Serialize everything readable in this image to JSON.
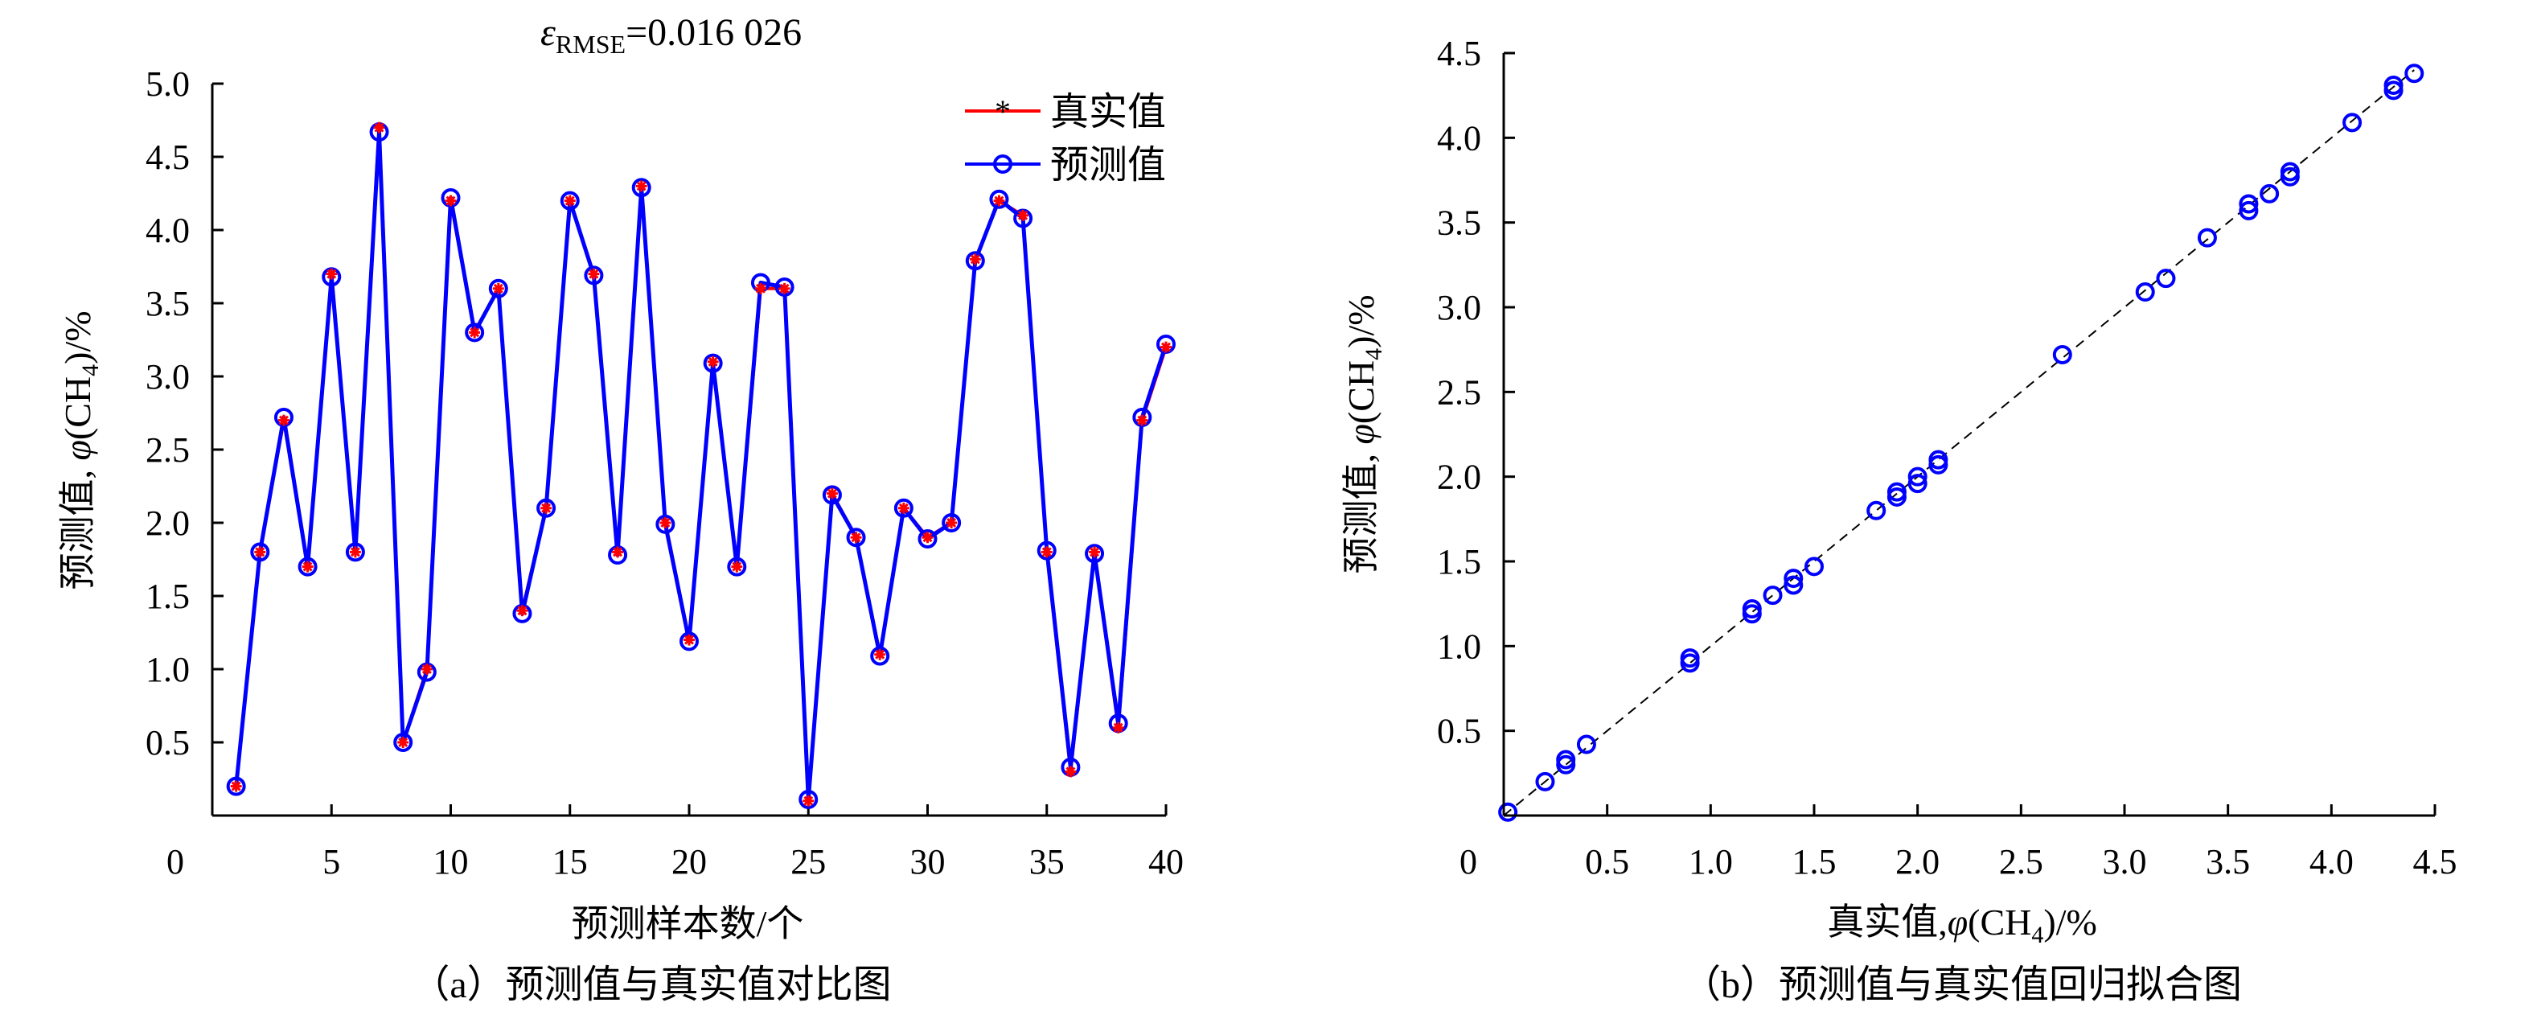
{
  "chart_data": [
    {
      "type": "line",
      "title": "εRMSE=0.016 026",
      "title_symbol": "ε",
      "title_sub": "RMSE",
      "title_value": "=0.016 026",
      "xlabel": "预测样本数/个",
      "ylabel_prefix": "预测值, ",
      "ylabel_phi": "φ",
      "ylabel_open": "(",
      "ylabel_ch": "CH",
      "ylabel_sub": "4",
      "ylabel_close": ")/%",
      "caption": "（a）预测值与真实值对比图",
      "xlim": [
        0,
        40
      ],
      "ylim": [
        0,
        5.0
      ],
      "x_ticks": [
        "5",
        "10",
        "15",
        "20",
        "25",
        "30",
        "35",
        "40"
      ],
      "x_origin_label": "0",
      "y_ticks": [
        "0.5",
        "1.0",
        "1.5",
        "2.0",
        "2.5",
        "3.0",
        "3.5",
        "4.0",
        "4.5",
        "5.0"
      ],
      "legend_position": "top-right",
      "x": [
        1,
        2,
        3,
        4,
        5,
        6,
        7,
        8,
        9,
        10,
        11,
        12,
        13,
        14,
        15,
        16,
        17,
        18,
        19,
        20,
        21,
        22,
        23,
        24,
        25,
        26,
        27,
        28,
        29,
        30,
        31,
        32,
        33,
        34,
        35,
        36,
        37,
        38,
        39,
        40
      ],
      "series": [
        {
          "name": "真实值",
          "color": "#ff0000",
          "marker": "asterisk",
          "values": [
            0.2,
            1.8,
            2.7,
            1.7,
            3.7,
            1.8,
            4.7,
            0.5,
            1.0,
            4.2,
            3.3,
            3.6,
            1.4,
            2.1,
            4.2,
            3.7,
            1.8,
            4.3,
            2.0,
            1.2,
            3.1,
            1.7,
            3.6,
            3.6,
            0.1,
            2.2,
            1.9,
            1.1,
            2.1,
            1.9,
            2.0,
            3.8,
            4.2,
            4.1,
            1.8,
            0.3,
            1.8,
            0.6,
            2.7,
            3.2
          ]
        },
        {
          "name": "预测值",
          "color": "#0000ff",
          "marker": "circle",
          "values": [
            0.2,
            1.8,
            2.72,
            1.7,
            3.68,
            1.8,
            4.67,
            0.5,
            0.98,
            4.22,
            3.3,
            3.6,
            1.38,
            2.1,
            4.2,
            3.69,
            1.78,
            4.29,
            1.99,
            1.19,
            3.09,
            1.7,
            3.64,
            3.61,
            0.11,
            2.19,
            1.9,
            1.09,
            2.1,
            1.89,
            2.0,
            3.79,
            4.21,
            4.08,
            1.81,
            0.33,
            1.79,
            0.63,
            2.72,
            3.22
          ]
        }
      ]
    },
    {
      "type": "scatter",
      "xlabel_prefix": "真实值,",
      "xlabel_phi": "φ",
      "xlabel_open": "(",
      "xlabel_ch": "CH",
      "xlabel_sub": "4",
      "xlabel_close": ")/%",
      "ylabel_prefix": "预测值, ",
      "ylabel_phi": "φ",
      "ylabel_open": "(",
      "ylabel_ch": "CH",
      "ylabel_sub": "4",
      "ylabel_close": ")/%",
      "caption": "（b）预测值与真实值回归拟合图",
      "xlim": [
        0,
        4.5
      ],
      "ylim": [
        0,
        4.5
      ],
      "origin_label": "0",
      "x_ticks": [
        "0.5",
        "1.0",
        "1.5",
        "2.0",
        "2.5",
        "3.0",
        "3.5",
        "4.0",
        "4.5"
      ],
      "y_ticks": [
        "0.5",
        "1.0",
        "1.5",
        "2.0",
        "2.5",
        "3.0",
        "3.5",
        "4.0",
        "4.5"
      ],
      "reference_line": "y = x, dashed black",
      "point_color": "#0000ff",
      "points": [
        {
          "x": 0.02,
          "y": 0.02
        },
        {
          "x": 0.2,
          "y": 0.2
        },
        {
          "x": 0.3,
          "y": 0.3
        },
        {
          "x": 0.3,
          "y": 0.33
        },
        {
          "x": 0.4,
          "y": 0.42
        },
        {
          "x": 0.9,
          "y": 0.9
        },
        {
          "x": 0.9,
          "y": 0.93
        },
        {
          "x": 1.2,
          "y": 1.19
        },
        {
          "x": 1.2,
          "y": 1.22
        },
        {
          "x": 1.3,
          "y": 1.3
        },
        {
          "x": 1.4,
          "y": 1.36
        },
        {
          "x": 1.4,
          "y": 1.4
        },
        {
          "x": 1.5,
          "y": 1.47
        },
        {
          "x": 1.8,
          "y": 1.8
        },
        {
          "x": 1.9,
          "y": 1.88
        },
        {
          "x": 1.9,
          "y": 1.91
        },
        {
          "x": 2.0,
          "y": 1.96
        },
        {
          "x": 2.0,
          "y": 2.0
        },
        {
          "x": 2.1,
          "y": 2.07
        },
        {
          "x": 2.1,
          "y": 2.1
        },
        {
          "x": 2.7,
          "y": 2.72
        },
        {
          "x": 3.1,
          "y": 3.09
        },
        {
          "x": 3.2,
          "y": 3.17
        },
        {
          "x": 3.4,
          "y": 3.41
        },
        {
          "x": 3.6,
          "y": 3.57
        },
        {
          "x": 3.6,
          "y": 3.61
        },
        {
          "x": 3.7,
          "y": 3.67
        },
        {
          "x": 3.8,
          "y": 3.77
        },
        {
          "x": 3.8,
          "y": 3.8
        },
        {
          "x": 4.1,
          "y": 4.09
        },
        {
          "x": 4.3,
          "y": 4.28
        },
        {
          "x": 4.3,
          "y": 4.31
        },
        {
          "x": 4.4,
          "y": 4.38
        }
      ]
    }
  ]
}
